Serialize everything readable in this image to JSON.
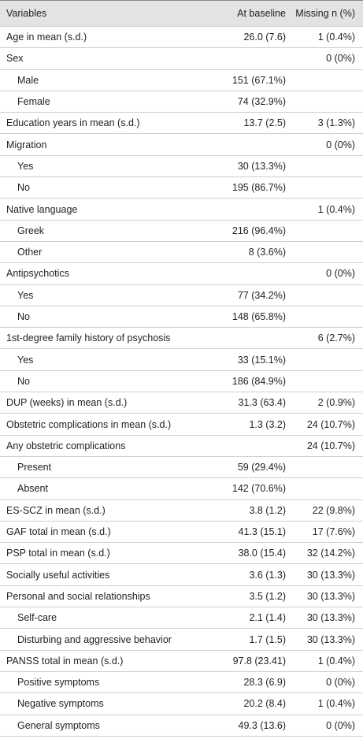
{
  "table": {
    "header": [
      "Variables",
      "At baseline",
      "Missing n (%)"
    ],
    "rows": [
      {
        "label": "Age in mean (s.d.)",
        "baseline": "26.0 (7.6)",
        "missing": "1 (0.4%)"
      },
      {
        "label": "Sex",
        "missing": "0 (0%)",
        "sub": [
          {
            "label": "Male",
            "baseline": "151 (67.1%)"
          },
          {
            "label": "Female",
            "baseline": "74 (32.9%)"
          }
        ]
      },
      {
        "label": "Education years in mean (s.d.)",
        "baseline": "13.7 (2.5)",
        "missing": "3 (1.3%)"
      },
      {
        "label": "Migration",
        "missing": "0 (0%)",
        "sub": [
          {
            "label": "Yes",
            "baseline": "30 (13.3%)"
          },
          {
            "label": "No",
            "baseline": "195 (86.7%)"
          }
        ]
      },
      {
        "label": "Native language",
        "missing": "1 (0.4%)",
        "sub": [
          {
            "label": "Greek",
            "baseline": "216 (96.4%)"
          },
          {
            "label": "Other",
            "baseline": "8 (3.6%)"
          }
        ]
      },
      {
        "label": "Antipsychotics",
        "missing": "0 (0%)",
        "sub": [
          {
            "label": "Yes",
            "baseline": "77 (34.2%)"
          },
          {
            "label": "No",
            "baseline": "148 (65.8%)"
          }
        ]
      },
      {
        "label": "1st-degree family history of psychosis",
        "missing": "6 (2.7%)",
        "sub": [
          {
            "label": "Yes",
            "baseline": "33 (15.1%)"
          },
          {
            "label": "No",
            "baseline": "186 (84.9%)"
          }
        ]
      },
      {
        "label": "DUP (weeks) in mean (s.d.)",
        "baseline": "31.3 (63.4)",
        "missing": "2 (0.9%)"
      },
      {
        "label": "Obstetric complications in mean (s.d.)",
        "baseline": "1.3 (3.2)",
        "missing": "24 (10.7%)"
      },
      {
        "label": "Any obstetric complications",
        "missing": "24 (10.7%)",
        "sub": [
          {
            "label": "Present",
            "baseline": "59 (29.4%)"
          },
          {
            "label": "Absent",
            "baseline": "142 (70.6%)"
          }
        ]
      },
      {
        "label": "ES-SCZ in mean (s.d.)",
        "baseline": "3.8 (1.2)",
        "missing": "22 (9.8%)"
      },
      {
        "label": "GAF total in mean (s.d.)",
        "baseline": "41.3 (15.1)",
        "missing": "17 (7.6%)"
      },
      {
        "label": "PSP total in mean (s.d.)",
        "baseline": "38.0 (15.4)",
        "missing": "32 (14.2%)"
      },
      {
        "label": "Socially useful activities",
        "baseline": "3.6 (1.3)",
        "missing": "30 (13.3%)"
      },
      {
        "label": "Personal and social relationships",
        "baseline": "3.5 (1.2)",
        "missing": "30 (13.3%)",
        "sub": [
          {
            "label": "Self-care",
            "baseline": "2.1 (1.4)",
            "missing": "30 (13.3%)"
          },
          {
            "label": "Disturbing and aggressive behavior",
            "baseline": "1.7 (1.5)",
            "missing": "30 (13.3%)"
          }
        ]
      },
      {
        "label": "PANSS total in mean (s.d.)",
        "baseline": "97.8 (23.41)",
        "missing": "1 (0.4%)",
        "sub": [
          {
            "label": "Positive symptoms",
            "baseline": "28.3 (6.9)",
            "missing": "0 (0%)"
          },
          {
            "label": "Negative symptoms",
            "baseline": "20.2 (8.4)",
            "missing": "1 (0.4%)"
          },
          {
            "label": "General symptoms",
            "baseline": "49.3 (13.6)",
            "missing": "0 (0%)"
          }
        ]
      }
    ]
  }
}
